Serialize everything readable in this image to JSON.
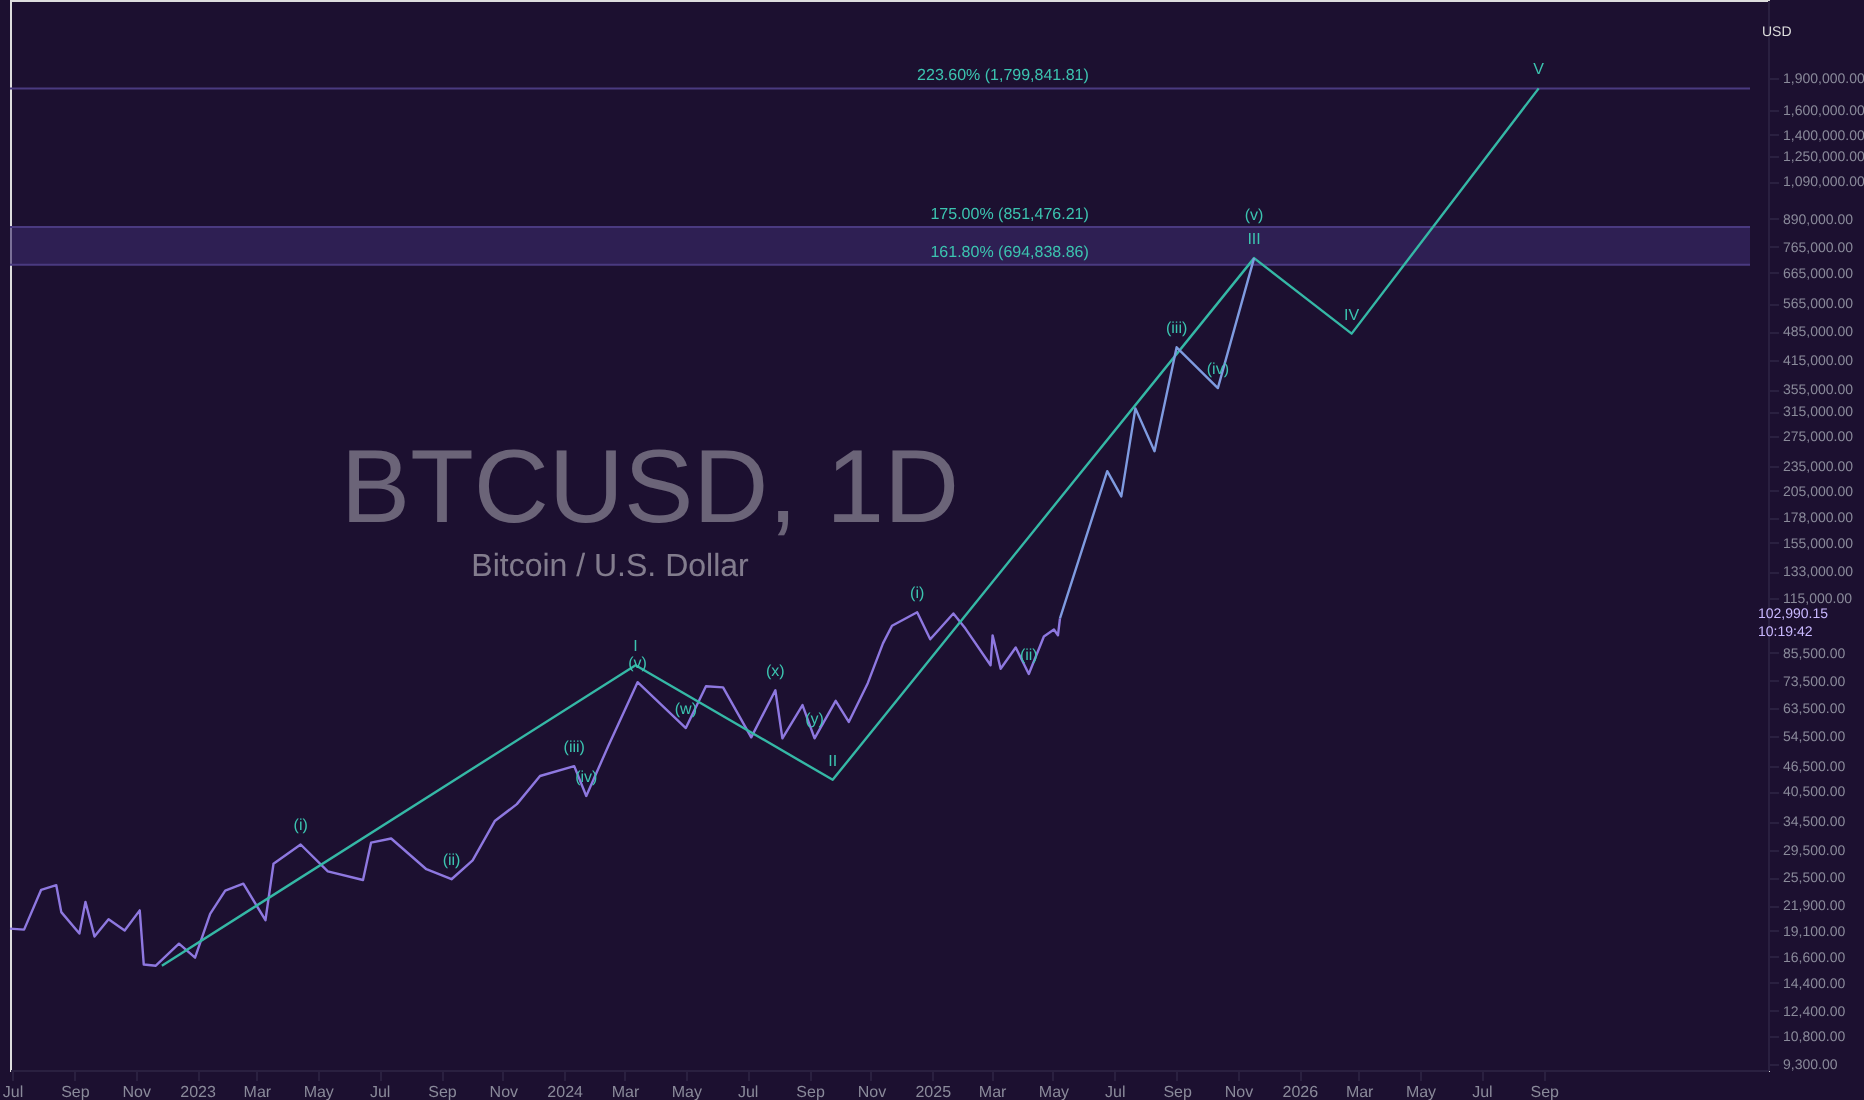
{
  "chart_data": {
    "type": "line",
    "title": "BTCUSD, 1D",
    "subtitle": "Bitcoin / U.S. Dollar",
    "log": "y",
    "grid": false,
    "marker": "none",
    "line_style": "solid",
    "xlim": [
      "2022-06-29",
      "2027-04-12"
    ],
    "ylim": [
      9000,
      2900000
    ],
    "xticks": [
      {
        "value": "2022-07-01",
        "label": "Jul"
      },
      {
        "value": "2022-09-01",
        "label": "Sep"
      },
      {
        "value": "2022-11-01",
        "label": "Nov"
      },
      {
        "value": "2023-01-01",
        "label": "2023"
      },
      {
        "value": "2023-03-01",
        "label": "Mar"
      },
      {
        "value": "2023-05-01",
        "label": "May"
      },
      {
        "value": "2023-07-01",
        "label": "Jul"
      },
      {
        "value": "2023-09-01",
        "label": "Sep"
      },
      {
        "value": "2023-11-01",
        "label": "Nov"
      },
      {
        "value": "2024-01-01",
        "label": "2024"
      },
      {
        "value": "2024-03-01",
        "label": "Mar"
      },
      {
        "value": "2024-05-01",
        "label": "May"
      },
      {
        "value": "2024-07-01",
        "label": "Jul"
      },
      {
        "value": "2024-09-01",
        "label": "Sep"
      },
      {
        "value": "2024-11-01",
        "label": "Nov"
      },
      {
        "value": "2025-01-01",
        "label": "2025"
      },
      {
        "value": "2025-03-01",
        "label": "Mar"
      },
      {
        "value": "2025-05-01",
        "label": "May"
      },
      {
        "value": "2025-07-01",
        "label": "Jul"
      },
      {
        "value": "2025-09-01",
        "label": "Sep"
      },
      {
        "value": "2025-11-01",
        "label": "Nov"
      },
      {
        "value": "2026-01-01",
        "label": "2026"
      },
      {
        "value": "2026-03-01",
        "label": "Mar"
      },
      {
        "value": "2026-05-01",
        "label": "May"
      },
      {
        "value": "2026-07-01",
        "label": "Jul"
      },
      {
        "value": "2026-09-01",
        "label": "Sep"
      }
    ],
    "yticks": [
      {
        "value": 9300,
        "label": "9,300.00"
      },
      {
        "value": 10800,
        "label": "10,800.00"
      },
      {
        "value": 12400,
        "label": "12,400.00"
      },
      {
        "value": 14400,
        "label": "14,400.00"
      },
      {
        "value": 16600,
        "label": "16,600.00"
      },
      {
        "value": 19100,
        "label": "19,100.00"
      },
      {
        "value": 21900,
        "label": "21,900.00"
      },
      {
        "value": 25500,
        "label": "25,500.00"
      },
      {
        "value": 29500,
        "label": "29,500.00"
      },
      {
        "value": 34500,
        "label": "34,500.00"
      },
      {
        "value": 40500,
        "label": "40,500.00"
      },
      {
        "value": 46500,
        "label": "46,500.00"
      },
      {
        "value": 54500,
        "label": "54,500.00"
      },
      {
        "value": 63500,
        "label": "63,500.00"
      },
      {
        "value": 73500,
        "label": "73,500.00"
      },
      {
        "value": 85500,
        "label": "85,500.00"
      },
      {
        "value": 115000,
        "label": "115,000.00"
      },
      {
        "value": 133000,
        "label": "133,000.00"
      },
      {
        "value": 155000,
        "label": "155,000.00"
      },
      {
        "value": 178000,
        "label": "178,000.00"
      },
      {
        "value": 205000,
        "label": "205,000.00"
      },
      {
        "value": 235000,
        "label": "235,000.00"
      },
      {
        "value": 275000,
        "label": "275,000.00"
      },
      {
        "value": 315000,
        "label": "315,000.00"
      },
      {
        "value": 355000,
        "label": "355,000.00"
      },
      {
        "value": 415000,
        "label": "415,000.00"
      },
      {
        "value": 485000,
        "label": "485,000.00"
      },
      {
        "value": 565000,
        "label": "565,000.00"
      },
      {
        "value": 665000,
        "label": "665,000.00"
      },
      {
        "value": 765000,
        "label": "765,000.00"
      },
      {
        "value": 890000,
        "label": "890,000.00"
      },
      {
        "value": 1090000,
        "label": "1,090,000.00"
      },
      {
        "value": 1250000,
        "label": "1,250,000.00"
      },
      {
        "value": 1400000,
        "label": "1,400,000.00"
      },
      {
        "value": 1600000,
        "label": "1,600,000.00"
      },
      {
        "value": 1900000,
        "label": "1,900,000.00"
      }
    ],
    "series": [
      {
        "color": "#8e78e0",
        "x": [
          "2022-06-29",
          "2022-07-13",
          "2022-07-30",
          "2022-08-14",
          "2022-08-19",
          "2022-09-06",
          "2022-09-12",
          "2022-09-21",
          "2022-10-05",
          "2022-10-21",
          "2022-11-05",
          "2022-11-09",
          "2022-11-21",
          "2022-12-14",
          "2022-12-30",
          "2023-01-14",
          "2023-01-29",
          "2023-02-16",
          "2023-03-10",
          "2023-03-18",
          "2023-04-14",
          "2023-05-11",
          "2023-06-15",
          "2023-06-23",
          "2023-07-13",
          "2023-08-17",
          "2023-09-11",
          "2023-10-02",
          "2023-10-24",
          "2023-11-15",
          "2023-12-08",
          "2024-01-11",
          "2024-01-23",
          "2024-02-14",
          "2024-03-14",
          "2024-05-01",
          "2024-05-21",
          "2024-06-07",
          "2024-07-05",
          "2024-07-29",
          "2024-08-05",
          "2024-08-25",
          "2024-09-06",
          "2024-09-27",
          "2024-10-10",
          "2024-10-29",
          "2024-11-13",
          "2024-11-22",
          "2024-12-17",
          "2024-12-30",
          "2025-01-22",
          "2025-02-03",
          "2025-02-28",
          "2025-03-02",
          "2025-03-10",
          "2025-03-25",
          "2025-04-07",
          "2025-04-22",
          "2025-05-02",
          "2025-05-06",
          "2025-05-08"
        ],
        "values": [
          19300,
          19200,
          23800,
          24400,
          21100,
          18800,
          22300,
          18500,
          20300,
          19100,
          21300,
          15900,
          15800,
          17800,
          16500,
          20900,
          23700,
          24600,
          20200,
          27400,
          30400,
          26300,
          25100,
          30700,
          31400,
          26600,
          25200,
          27900,
          34500,
          37800,
          44000,
          46400,
          39500,
          51800,
          73000,
          57000,
          71400,
          71000,
          54200,
          69900,
          53900,
          64500,
          53900,
          66000,
          58900,
          72700,
          90000,
          99000,
          106500,
          92000,
          105800,
          97500,
          80000,
          94000,
          78500,
          88000,
          76300,
          93400,
          97000,
          94000,
          102990
        ]
      },
      {
        "color": "#35b8a6",
        "x": [
          "2022-11-27",
          "2024-03-12",
          "2024-09-24",
          "2025-11-17",
          "2026-02-22",
          "2026-08-27"
        ],
        "values": [
          15800,
          80000,
          43100,
          720000,
          479000,
          1800000
        ]
      },
      {
        "color": "#7f9be0",
        "x": [
          "2025-05-08",
          "2025-06-24",
          "2025-07-08",
          "2025-07-22",
          "2025-08-10",
          "2025-09-01",
          "2025-10-12",
          "2025-11-17"
        ],
        "values": [
          102990,
          228000,
          199000,
          320000,
          254000,
          445000,
          357000,
          720000
        ]
      }
    ],
    "bands": [
      {
        "axis": "y",
        "from": 694838.86,
        "to": 851476.21,
        "color": "#3a2a6a"
      }
    ],
    "ref_lines": [
      {
        "axis": "y",
        "value": 851476.21,
        "label": "175.00% (851,476.21)",
        "color": "#4a3a80"
      },
      {
        "axis": "y",
        "value": 694838.86,
        "label": "161.80% (694,838.86)",
        "color": "#4a3a80"
      },
      {
        "axis": "y",
        "value": 1799841.81,
        "label": "223.60% (1,799,841.81)",
        "color": "#4a3a80"
      }
    ],
    "annotations": [
      "USD",
      "102,990.15",
      "10:19:42",
      {
        "text": "I",
        "x": "2024-03-12",
        "y": 80000
      },
      {
        "text": "II",
        "x": "2024-09-24",
        "y": 43100
      },
      {
        "text": "III",
        "x": "2025-11-17",
        "y": 720000
      },
      {
        "text": "IV",
        "x": "2026-02-22",
        "y": 479000
      },
      {
        "text": "V",
        "x": "2026-08-27",
        "y": 1800000
      },
      {
        "text": "(i)",
        "x": "2023-04-14",
        "y": 30400
      },
      {
        "text": "(ii)",
        "x": "2023-09-11",
        "y": 25200
      },
      {
        "text": "(iii)",
        "x": "2024-01-11",
        "y": 46400
      },
      {
        "text": "(iv)",
        "x": "2024-01-23",
        "y": 39500
      },
      {
        "text": "(v)",
        "x": "2024-03-14",
        "y": 73000
      },
      {
        "text": "(w)",
        "x": "2024-05-01",
        "y": 57000
      },
      {
        "text": "(x)",
        "x": "2024-07-29",
        "y": 69900
      },
      {
        "text": "(y)",
        "x": "2024-09-06",
        "y": 53900
      },
      {
        "text": "(i)",
        "x": "2024-12-17",
        "y": 106500
      },
      {
        "text": "(ii)",
        "x": "2025-04-07",
        "y": 76300
      },
      {
        "text": "(iii)",
        "x": "2025-09-01",
        "y": 445000
      },
      {
        "text": "(iv)",
        "x": "2025-10-12",
        "y": 357000
      },
      {
        "text": "(v)",
        "x": "2025-11-17",
        "y": 720000
      }
    ]
  }
}
